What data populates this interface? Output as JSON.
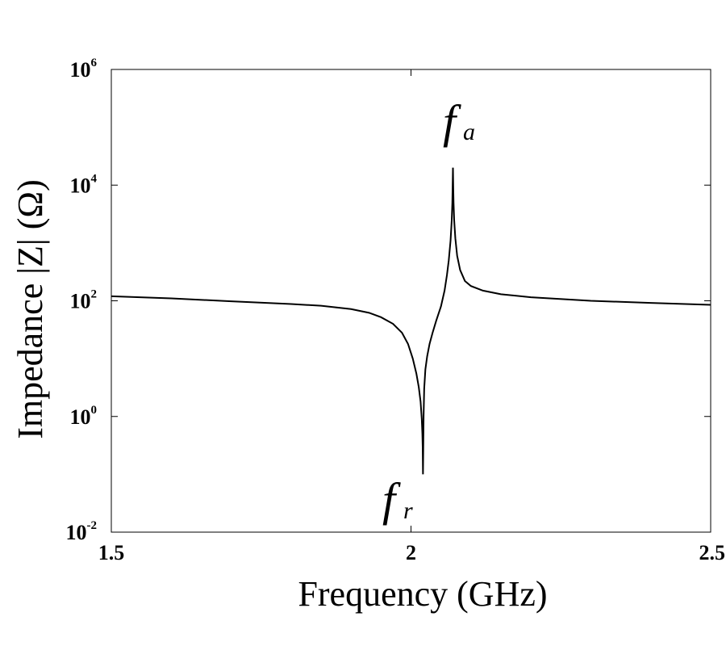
{
  "chart_data": {
    "type": "line",
    "title": "",
    "xlabel": "Frequency (GHz)",
    "ylabel": "Impedance |Z| (Ω)",
    "xlim": [
      1.5,
      2.5
    ],
    "ylim": [
      0.01,
      1000000
    ],
    "yscale": "log",
    "grid": false,
    "x_ticks": [
      {
        "value": 1.5,
        "label": "1.5"
      },
      {
        "value": 2.0,
        "label": "2"
      },
      {
        "value": 2.5,
        "label": "2.5"
      }
    ],
    "y_ticks": [
      {
        "value": 0.01,
        "base": "10",
        "exp": "-2"
      },
      {
        "value": 1,
        "base": "10",
        "exp": "0"
      },
      {
        "value": 100,
        "base": "10",
        "exp": "2"
      },
      {
        "value": 10000,
        "base": "10",
        "exp": "4"
      },
      {
        "value": 1000000,
        "base": "10",
        "exp": "6"
      }
    ],
    "series": [
      {
        "x": [
          1.5,
          1.6,
          1.7,
          1.8,
          1.85,
          1.9,
          1.93,
          1.95,
          1.97,
          1.985,
          1.995,
          2.003,
          2.009,
          2.013,
          2.016,
          2.018,
          2.019,
          2.0195,
          2.02,
          2.0205,
          2.021,
          2.022,
          2.024,
          2.027,
          2.031,
          2.036,
          2.042,
          2.05,
          2.056,
          2.06,
          2.063,
          2.066,
          2.068,
          2.069,
          2.0695,
          2.07,
          2.0705,
          2.071,
          2.072,
          2.074,
          2.077,
          2.082,
          2.09,
          2.1,
          2.12,
          2.15,
          2.2,
          2.3,
          2.4,
          2.5
        ],
        "y": [
          120,
          110,
          98,
          88,
          82,
          72,
          62,
          52,
          40,
          28,
          18,
          10,
          5.5,
          3.2,
          1.8,
          0.9,
          0.5,
          0.3,
          0.1,
          0.3,
          1.0,
          3.0,
          6.5,
          11,
          18,
          28,
          45,
          80,
          150,
          280,
          500,
          1100,
          2500,
          5000,
          10000,
          20000,
          9000,
          5000,
          2500,
          1200,
          600,
          340,
          220,
          180,
          150,
          130,
          115,
          100,
          92,
          85
        ]
      }
    ],
    "annotations": [
      {
        "text": "f",
        "sub": "a",
        "near_x": 2.07
      },
      {
        "text": "f",
        "sub": "r",
        "near_x": 2.02
      }
    ]
  }
}
